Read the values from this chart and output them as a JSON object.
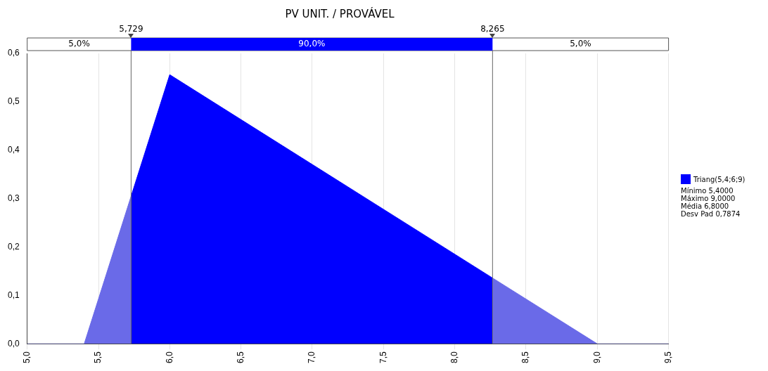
{
  "chart_data": {
    "type": "area",
    "title": "PV UNIT. / PROVÁVEL",
    "series": [
      {
        "color": "#6a6ae8",
        "x": [
          5.0,
          5.4,
          5.729
        ],
        "values": [
          0,
          0,
          0.305
        ]
      },
      {
        "name": "Triang(5,4;6;9)",
        "color": "#0000ff",
        "x": [
          5.729,
          6.0,
          8.265
        ],
        "values": [
          0.305,
          0.556,
          0.136
        ]
      },
      {
        "color": "#6a6ae8",
        "x": [
          8.265,
          9.0,
          9.5
        ],
        "values": [
          0.136,
          0,
          0
        ]
      }
    ],
    "xlim": [
      5.0,
      9.5
    ],
    "xticks": [
      {
        "value": 5.0,
        "label": "5,0"
      },
      {
        "value": 5.5,
        "label": "5,5"
      },
      {
        "value": 6.0,
        "label": "6,0"
      },
      {
        "value": 6.5,
        "label": "6,5"
      },
      {
        "value": 7.0,
        "label": "7,0"
      },
      {
        "value": 7.5,
        "label": "7,5"
      },
      {
        "value": 8.0,
        "label": "8,0"
      },
      {
        "value": 8.5,
        "label": "8,5"
      },
      {
        "value": 9.0,
        "label": "9,0"
      },
      {
        "value": 9.5,
        "label": "9,5"
      }
    ],
    "ylim": [
      0,
      0.6
    ],
    "yticks": [
      {
        "value": 0,
        "label": "0,0"
      },
      {
        "value": 0.1,
        "label": "0,1"
      },
      {
        "value": 0.2,
        "label": "0,2"
      },
      {
        "value": 0.3,
        "label": "0,3"
      },
      {
        "value": 0.4,
        "label": "0,4"
      },
      {
        "value": 0.5,
        "label": "0,5"
      },
      {
        "value": 0.6,
        "label": "0,6"
      }
    ],
    "ref_lines": [
      {
        "axis": "x",
        "value": 5.729,
        "label": "5,729",
        "color": "#666666"
      },
      {
        "axis": "x",
        "value": 8.265,
        "label": "8,265",
        "color": "#666666"
      }
    ],
    "annotations": [
      "5,0%",
      "90,0%",
      "5,0%",
      "Mínimo 5,4000",
      "Máximo 9,0000",
      "Média 6,8000",
      "Desv Pad 0,7874"
    ],
    "grid": "x",
    "legend": "right"
  }
}
